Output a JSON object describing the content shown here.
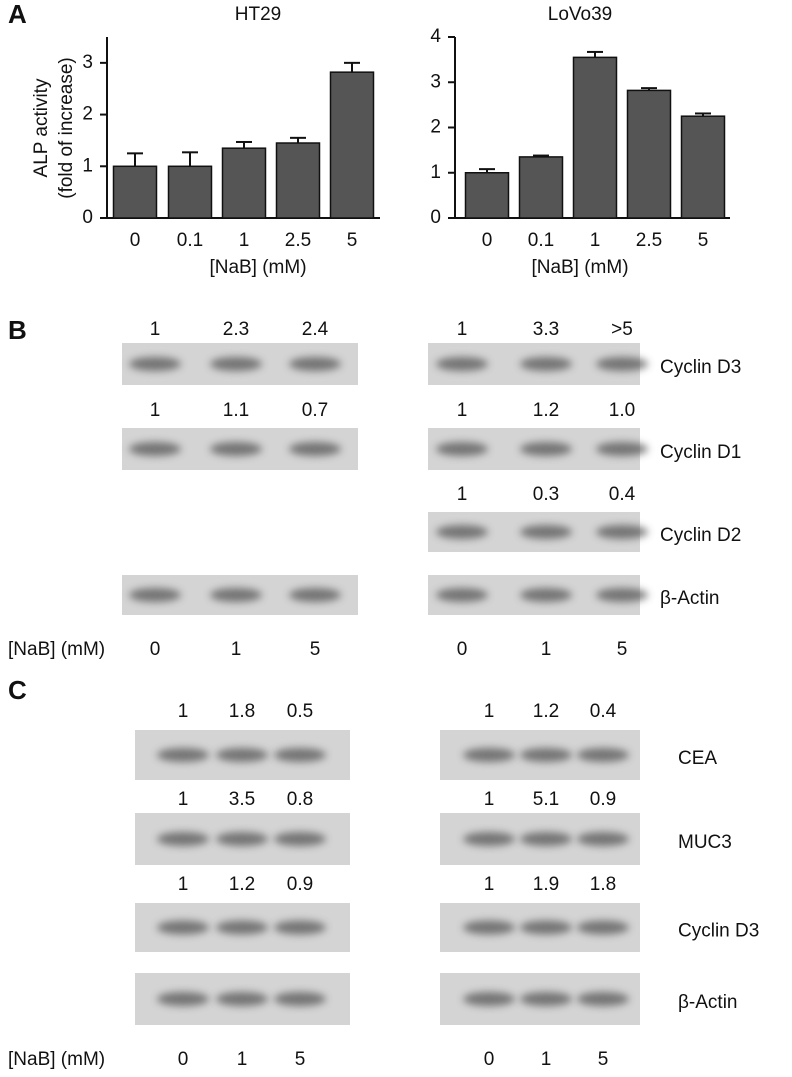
{
  "chart_data": [
    {
      "type": "bar",
      "panel": "A",
      "title": "HT29",
      "ylabel": [
        "ALP activity",
        "(fold of increase)"
      ],
      "xlabel": "[NaB]  (mM)",
      "categories": [
        "0",
        "0.1",
        "1",
        "2.5",
        "5"
      ],
      "values": [
        1.0,
        1.0,
        1.35,
        1.45,
        2.82
      ],
      "errors": [
        0.25,
        0.27,
        0.12,
        0.1,
        0.18
      ],
      "color": "#555555",
      "ylim": [
        0,
        3.5
      ],
      "yticks": [
        0,
        1,
        2,
        3
      ]
    },
    {
      "type": "bar",
      "title": "LoVo39",
      "xlabel": "[NaB] (mM)",
      "categories": [
        "0",
        "0.1",
        "1",
        "2.5",
        "5"
      ],
      "values": [
        1.0,
        1.35,
        3.55,
        2.82,
        2.25
      ],
      "errors": [
        0.08,
        0.03,
        0.12,
        0.05,
        0.06
      ],
      "color": "#555555",
      "ylim": [
        0,
        4
      ],
      "yticks": [
        0,
        1,
        2,
        3,
        4
      ]
    }
  ],
  "panel_b": {
    "label": "B",
    "dose_label": "[NaB] (mM)",
    "doses": [
      "0",
      "1",
      "5"
    ],
    "blots": [
      {
        "name": "Cyclin D3",
        "left": [
          "1",
          "2.3",
          "2.4"
        ],
        "right": [
          "1",
          "3.3",
          ">5"
        ]
      },
      {
        "name": "Cyclin D1",
        "left": [
          "1",
          "1.1",
          "0.7"
        ],
        "right": [
          "1",
          "1.2",
          "1.0"
        ]
      },
      {
        "name": "Cyclin D2",
        "right": [
          "1",
          "0.3",
          "0.4"
        ]
      },
      {
        "name": "β-Actin"
      }
    ]
  },
  "panel_c": {
    "label": "C",
    "dose_label": "[NaB] (mM)",
    "doses": [
      "0",
      "1",
      "5"
    ],
    "blots": [
      {
        "name": "CEA",
        "left": [
          "1",
          "1.8",
          "0.5"
        ],
        "right": [
          "1",
          "1.2",
          "0.4"
        ]
      },
      {
        "name": "MUC3",
        "left": [
          "1",
          "3.5",
          "0.8"
        ],
        "right": [
          "1",
          "5.1",
          "0.9"
        ]
      },
      {
        "name": "Cyclin D3",
        "left": [
          "1",
          "1.2",
          "0.9"
        ],
        "right": [
          "1",
          "1.9",
          "1.8"
        ]
      },
      {
        "name": "β-Actin"
      }
    ]
  }
}
